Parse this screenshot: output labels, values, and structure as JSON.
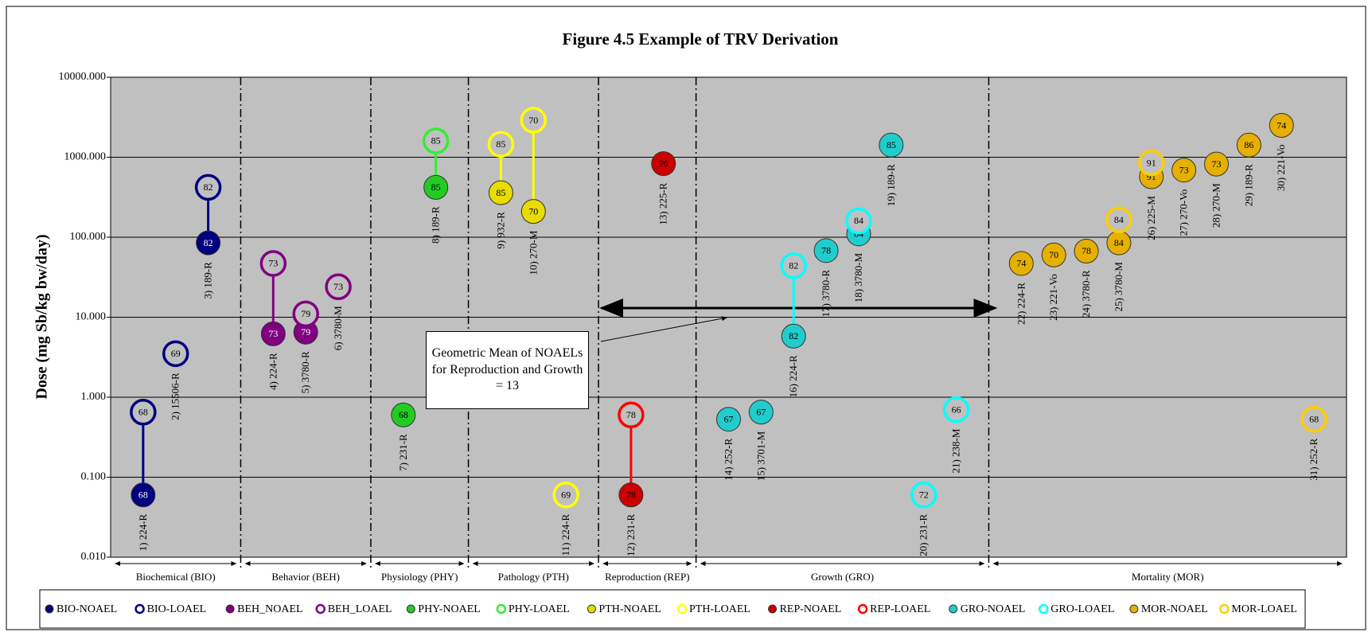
{
  "chart_data": {
    "type": "scatter",
    "title": "Figure 4.5  Example of TRV Derivation",
    "y_label": "Dose (mg Sb/kg bw/day)",
    "log_y": true,
    "grid": true,
    "legend": "bottom",
    "ylim": [
      0.01,
      10000
    ],
    "yticks": [
      {
        "value": 0.01,
        "label": "0.010"
      },
      {
        "value": 0.1,
        "label": "0.100"
      },
      {
        "value": 1,
        "label": "1.000"
      },
      {
        "value": 10,
        "label": "10.000"
      },
      {
        "value": 100,
        "label": "100.000"
      },
      {
        "value": 1000,
        "label": "1000.000"
      },
      {
        "value": 10000,
        "label": "10000.000"
      }
    ],
    "groups": [
      "Biochemical (BIO)",
      "Behavior (BEH)",
      "Physiology (PHY)",
      "Pathology (PTH)",
      "Reproduction (REP)",
      "Growth (GRO)",
      "Mortality (MOR)"
    ],
    "categories": [
      "1) 224-R",
      "2) 15506-R",
      "3) 189-R",
      "4) 224-R",
      "5) 3780-R",
      "6) 3780-M",
      "7) 231-R",
      "8) 189-R",
      "9) 932-R",
      "10) 270-M",
      "11) 224-R",
      "12) 231-R",
      "13) 225-R",
      "14) 252-R",
      "15) 3701-M",
      "16) 224-R",
      "17) 3780-R",
      "18) 3780-M",
      "19) 189-R",
      "20) 231-R",
      "21) 238-M",
      "22) 224-R",
      "23) 221-Vo",
      "24) 3780-R",
      "25) 3780-M",
      "26) 225-M",
      "27) 270-Vo",
      "28) 270-M",
      "29) 189-R",
      "30) 221-Vo",
      "31) 252-R"
    ],
    "series": [
      {
        "name": "BIO-NOAEL",
        "color": "#000080",
        "hollow": false,
        "label_color": "#ffffff",
        "values": [
          0.06,
          null,
          85,
          null,
          null,
          null,
          null,
          null,
          null,
          null,
          null,
          null,
          null,
          null,
          null,
          null,
          null,
          null,
          null,
          null,
          null,
          null,
          null,
          null,
          null,
          null,
          null,
          null,
          null,
          null,
          null
        ],
        "scores": [
          68,
          null,
          82,
          null,
          null,
          null,
          null,
          null,
          null,
          null,
          null,
          null,
          null,
          null,
          null,
          null,
          null,
          null,
          null,
          null,
          null,
          null,
          null,
          null,
          null,
          null,
          null,
          null,
          null,
          null,
          null
        ]
      },
      {
        "name": "BIO-LOAEL",
        "color": "#000080",
        "hollow": true,
        "label_color": "#000000",
        "values": [
          0.65,
          3.5,
          420,
          null,
          null,
          null,
          null,
          null,
          null,
          null,
          null,
          null,
          null,
          null,
          null,
          null,
          null,
          null,
          null,
          null,
          null,
          null,
          null,
          null,
          null,
          null,
          null,
          null,
          null,
          null,
          null
        ],
        "scores": [
          68,
          69,
          82,
          null,
          null,
          null,
          null,
          null,
          null,
          null,
          null,
          null,
          null,
          null,
          null,
          null,
          null,
          null,
          null,
          null,
          null,
          null,
          null,
          null,
          null,
          null,
          null,
          null,
          null,
          null,
          null
        ]
      },
      {
        "name": "BEH_NOAEL",
        "color": "#800080",
        "hollow": false,
        "label_color": "#ffffff",
        "values": [
          null,
          null,
          null,
          6.2,
          6.5,
          null,
          null,
          null,
          null,
          null,
          null,
          null,
          null,
          null,
          null,
          null,
          null,
          null,
          null,
          null,
          null,
          null,
          null,
          null,
          null,
          null,
          null,
          null,
          null,
          null,
          null
        ],
        "scores": [
          null,
          null,
          null,
          73,
          79,
          null,
          null,
          null,
          null,
          null,
          null,
          null,
          null,
          null,
          null,
          null,
          null,
          null,
          null,
          null,
          null,
          null,
          null,
          null,
          null,
          null,
          null,
          null,
          null,
          null,
          null
        ]
      },
      {
        "name": "BEH_LOAEL",
        "color": "#800080",
        "hollow": true,
        "label_color": "#000000",
        "values": [
          null,
          null,
          null,
          47,
          11,
          24,
          null,
          null,
          null,
          null,
          null,
          null,
          null,
          null,
          null,
          null,
          null,
          null,
          null,
          null,
          null,
          null,
          null,
          null,
          null,
          null,
          null,
          null,
          null,
          null,
          null
        ],
        "scores": [
          null,
          null,
          null,
          73,
          79,
          73,
          null,
          null,
          null,
          null,
          null,
          null,
          null,
          null,
          null,
          null,
          null,
          null,
          null,
          null,
          null,
          null,
          null,
          null,
          null,
          null,
          null,
          null,
          null,
          null,
          null
        ]
      },
      {
        "name": "PHY-NOAEL",
        "color": "#22cc22",
        "hollow": false,
        "label_color": "#000000",
        "values": [
          null,
          null,
          null,
          null,
          null,
          null,
          0.6,
          420,
          null,
          null,
          null,
          null,
          null,
          null,
          null,
          null,
          null,
          null,
          null,
          null,
          null,
          null,
          null,
          null,
          null,
          null,
          null,
          null,
          null,
          null,
          null
        ],
        "scores": [
          null,
          null,
          null,
          null,
          null,
          null,
          68,
          85,
          null,
          null,
          null,
          null,
          null,
          null,
          null,
          null,
          null,
          null,
          null,
          null,
          null,
          null,
          null,
          null,
          null,
          null,
          null,
          null,
          null,
          null,
          null
        ]
      },
      {
        "name": "PHY-LOAEL",
        "color": "#33ee33",
        "hollow": true,
        "label_color": "#000000",
        "values": [
          null,
          null,
          null,
          null,
          null,
          null,
          null,
          1600,
          null,
          null,
          null,
          null,
          null,
          null,
          null,
          null,
          null,
          null,
          null,
          null,
          null,
          null,
          null,
          null,
          null,
          null,
          null,
          null,
          null,
          null,
          null
        ],
        "scores": [
          null,
          null,
          null,
          null,
          null,
          null,
          null,
          85,
          null,
          null,
          null,
          null,
          null,
          null,
          null,
          null,
          null,
          null,
          null,
          null,
          null,
          null,
          null,
          null,
          null,
          null,
          null,
          null,
          null,
          null,
          null
        ]
      },
      {
        "name": "PTH-NOAEL",
        "color": "#e8dc00",
        "hollow": false,
        "label_color": "#000000",
        "values": [
          null,
          null,
          null,
          null,
          null,
          null,
          null,
          null,
          360,
          210,
          null,
          null,
          null,
          null,
          null,
          null,
          null,
          null,
          null,
          null,
          null,
          null,
          null,
          null,
          null,
          null,
          null,
          null,
          null,
          null,
          null
        ],
        "scores": [
          null,
          null,
          null,
          null,
          null,
          null,
          null,
          null,
          85,
          70,
          null,
          null,
          null,
          null,
          null,
          null,
          null,
          null,
          null,
          null,
          null,
          null,
          null,
          null,
          null,
          null,
          null,
          null,
          null,
          null,
          null
        ]
      },
      {
        "name": "PTH-LOAEL",
        "color": "#ffff00",
        "hollow": true,
        "label_color": "#000000",
        "values": [
          null,
          null,
          null,
          null,
          null,
          null,
          null,
          null,
          1450,
          2900,
          0.06,
          null,
          null,
          null,
          null,
          null,
          null,
          null,
          null,
          null,
          null,
          null,
          null,
          null,
          null,
          null,
          null,
          null,
          null,
          null,
          null
        ],
        "scores": [
          null,
          null,
          null,
          null,
          null,
          null,
          null,
          null,
          85,
          70,
          69,
          null,
          null,
          null,
          null,
          null,
          null,
          null,
          null,
          null,
          null,
          null,
          null,
          null,
          null,
          null,
          null,
          null,
          null,
          null,
          null
        ]
      },
      {
        "name": "REP-NOAEL",
        "color": "#cc0000",
        "hollow": false,
        "label_color": "#000000",
        "values": [
          null,
          null,
          null,
          null,
          null,
          null,
          null,
          null,
          null,
          null,
          null,
          0.06,
          830,
          null,
          null,
          null,
          null,
          null,
          null,
          null,
          null,
          null,
          null,
          null,
          null,
          null,
          null,
          null,
          null,
          null,
          null
        ],
        "scores": [
          null,
          null,
          null,
          null,
          null,
          null,
          null,
          null,
          null,
          null,
          null,
          78,
          79,
          null,
          null,
          null,
          null,
          null,
          null,
          null,
          null,
          null,
          null,
          null,
          null,
          null,
          null,
          null,
          null,
          null,
          null
        ]
      },
      {
        "name": "REP-LOAEL",
        "color": "#ff0000",
        "hollow": true,
        "label_color": "#000000",
        "values": [
          null,
          null,
          null,
          null,
          null,
          null,
          null,
          null,
          null,
          null,
          null,
          0.6,
          null,
          null,
          null,
          null,
          null,
          null,
          null,
          null,
          null,
          null,
          null,
          null,
          null,
          null,
          null,
          null,
          null,
          null,
          null
        ],
        "scores": [
          null,
          null,
          null,
          null,
          null,
          null,
          null,
          null,
          null,
          null,
          null,
          78,
          null,
          null,
          null,
          null,
          null,
          null,
          null,
          null,
          null,
          null,
          null,
          null,
          null,
          null,
          null,
          null,
          null,
          null,
          null
        ]
      },
      {
        "name": "GRO-NOAEL",
        "color": "#22cccc",
        "hollow": false,
        "label_color": "#000000",
        "values": [
          null,
          null,
          null,
          null,
          null,
          null,
          null,
          null,
          null,
          null,
          null,
          null,
          null,
          0.53,
          0.65,
          5.8,
          68,
          110,
          1420,
          null,
          null,
          null,
          null,
          null,
          null,
          null,
          null,
          null,
          null,
          null,
          null
        ],
        "scores": [
          null,
          null,
          null,
          null,
          null,
          null,
          null,
          null,
          null,
          null,
          null,
          null,
          null,
          67,
          67,
          82,
          78,
          84,
          85,
          null,
          null,
          null,
          null,
          null,
          null,
          null,
          null,
          null,
          null,
          null,
          null
        ]
      },
      {
        "name": "GRO-LOAEL",
        "color": "#00ffff",
        "hollow": true,
        "label_color": "#000000",
        "values": [
          null,
          null,
          null,
          null,
          null,
          null,
          null,
          null,
          null,
          null,
          null,
          null,
          null,
          null,
          null,
          44,
          null,
          160,
          null,
          0.06,
          0.7,
          null,
          null,
          null,
          null,
          null,
          null,
          null,
          null,
          null,
          null
        ],
        "scores": [
          null,
          null,
          null,
          null,
          null,
          null,
          null,
          null,
          null,
          null,
          null,
          null,
          null,
          null,
          null,
          82,
          null,
          84,
          null,
          72,
          66,
          null,
          null,
          null,
          null,
          null,
          null,
          null,
          null,
          null,
          null
        ]
      },
      {
        "name": "MOR-NOAEL",
        "color": "#e6b000",
        "hollow": false,
        "label_color": "#000000",
        "values": [
          null,
          null,
          null,
          null,
          null,
          null,
          null,
          null,
          null,
          null,
          null,
          null,
          null,
          null,
          null,
          null,
          null,
          null,
          null,
          null,
          null,
          47,
          60,
          67,
          85,
          570,
          690,
          820,
          1420,
          2500,
          null
        ],
        "scores": [
          null,
          null,
          null,
          null,
          null,
          null,
          null,
          null,
          null,
          null,
          null,
          null,
          null,
          null,
          null,
          null,
          null,
          null,
          null,
          null,
          null,
          74,
          70,
          78,
          84,
          91,
          73,
          73,
          86,
          74,
          null
        ]
      },
      {
        "name": "MOR-LOAEL",
        "color": "#ffcc00",
        "hollow": true,
        "label_color": "#000000",
        "values": [
          null,
          null,
          null,
          null,
          null,
          null,
          null,
          null,
          null,
          null,
          null,
          null,
          null,
          null,
          null,
          null,
          null,
          null,
          null,
          null,
          null,
          null,
          null,
          null,
          165,
          850,
          null,
          null,
          null,
          null,
          0.53
        ],
        "scores": [
          null,
          null,
          null,
          null,
          null,
          null,
          null,
          null,
          null,
          null,
          null,
          null,
          null,
          null,
          null,
          null,
          null,
          null,
          null,
          null,
          null,
          null,
          null,
          null,
          84,
          91,
          null,
          null,
          null,
          null,
          68
        ]
      }
    ],
    "reference_line": {
      "value": 13,
      "label": "Geometric Mean of NOAELs for Reproduction and Growth = 13",
      "groups": [
        "Reproduction (REP)",
        "Growth (GRO)"
      ]
    }
  }
}
